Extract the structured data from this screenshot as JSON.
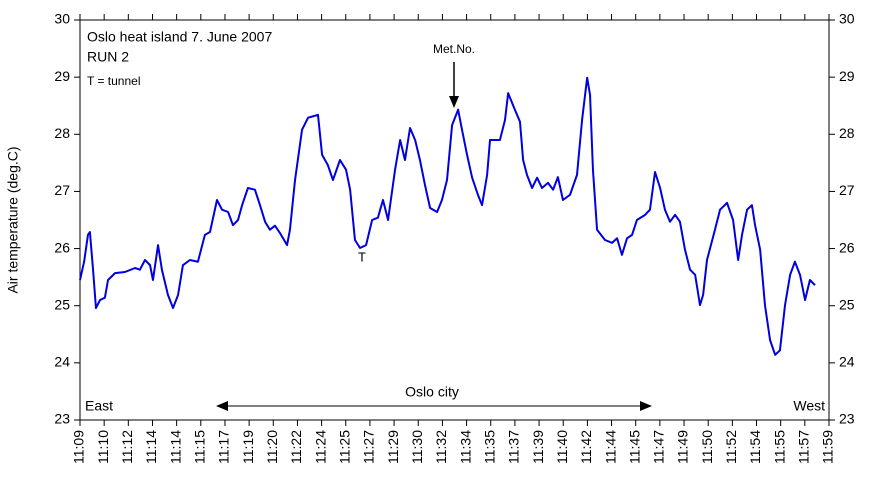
{
  "chart_data": {
    "type": "line",
    "title": "Oslo heat island 7. June 2007",
    "subtitle": "RUN 2",
    "ylabel": "Air temperature (deg.C)",
    "annotations": {
      "legend_note": "T = tunnel",
      "met": "Met.No.",
      "tunnel": "T",
      "east": "East",
      "west": "West",
      "city": "Oslo city"
    },
    "xlim": [
      0,
      31
    ],
    "xticks": [
      {
        "value": 0,
        "label": "11:09"
      },
      {
        "value": 1,
        "label": "11:10"
      },
      {
        "value": 2,
        "label": "11:12"
      },
      {
        "value": 3,
        "label": "11:14"
      },
      {
        "value": 4,
        "label": "11:14"
      },
      {
        "value": 5,
        "label": "11:15"
      },
      {
        "value": 6,
        "label": "11:17"
      },
      {
        "value": 7,
        "label": "11:19"
      },
      {
        "value": 8,
        "label": "11:20"
      },
      {
        "value": 9,
        "label": "11:22"
      },
      {
        "value": 10,
        "label": "11:24"
      },
      {
        "value": 11,
        "label": "11:25"
      },
      {
        "value": 12,
        "label": "11:27"
      },
      {
        "value": 13,
        "label": "11:29"
      },
      {
        "value": 14,
        "label": "11:30"
      },
      {
        "value": 15,
        "label": "11:32"
      },
      {
        "value": 16,
        "label": "11:34"
      },
      {
        "value": 17,
        "label": "11:35"
      },
      {
        "value": 18,
        "label": "11:37"
      },
      {
        "value": 19,
        "label": "11:39"
      },
      {
        "value": 20,
        "label": "11:40"
      },
      {
        "value": 21,
        "label": "11:42"
      },
      {
        "value": 22,
        "label": "11:44"
      },
      {
        "value": 23,
        "label": "11:45"
      },
      {
        "value": 24,
        "label": "11:47"
      },
      {
        "value": 25,
        "label": "11:49"
      },
      {
        "value": 26,
        "label": "11:50"
      },
      {
        "value": 27,
        "label": "11:52"
      },
      {
        "value": 28,
        "label": "11:54"
      },
      {
        "value": 29,
        "label": "11:55"
      },
      {
        "value": 30,
        "label": "11:57"
      },
      {
        "value": 31,
        "label": "11:59"
      }
    ],
    "ylim": [
      23,
      30
    ],
    "yticks": [
      23,
      24,
      25,
      26,
      27,
      28,
      29,
      30
    ],
    "series": [
      {
        "color": "#0000e0",
        "x": [
          0,
          0.17,
          0.33,
          0.41,
          0.54,
          0.66,
          0.83,
          1.03,
          1.16,
          1.45,
          1.86,
          2.28,
          2.48,
          2.69,
          2.9,
          3.02,
          3.23,
          3.39,
          3.64,
          3.85,
          4.06,
          4.26,
          4.55,
          4.88,
          5.17,
          5.38,
          5.67,
          5.88,
          6.13,
          6.33,
          6.54,
          6.71,
          6.95,
          7.24,
          7.45,
          7.66,
          7.86,
          8.07,
          8.28,
          8.57,
          8.69,
          8.9,
          9.19,
          9.44,
          9.85,
          10.02,
          10.26,
          10.47,
          10.76,
          11.01,
          11.18,
          11.38,
          11.59,
          11.84,
          12.09,
          12.33,
          12.54,
          12.75,
          13.04,
          13.25,
          13.45,
          13.66,
          13.87,
          14.07,
          14.28,
          14.49,
          14.78,
          14.98,
          15.19,
          15.4,
          15.65,
          15.81,
          16.02,
          16.23,
          16.47,
          16.64,
          16.85,
          16.97,
          17.38,
          17.59,
          17.72,
          18.0,
          18.21,
          18.34,
          18.5,
          18.71,
          18.92,
          19.12,
          19.37,
          19.58,
          19.78,
          19.99,
          20.28,
          20.57,
          20.78,
          20.99,
          21.11,
          21.23,
          21.4,
          21.73,
          22.02,
          22.23,
          22.43,
          22.64,
          22.85,
          23.05,
          23.39,
          23.59,
          23.8,
          24.01,
          24.21,
          24.42,
          24.63,
          24.83,
          25.04,
          25.25,
          25.46,
          25.66,
          25.79,
          25.95,
          26.28,
          26.49,
          26.78,
          27.03,
          27.24,
          27.4,
          27.61,
          27.81,
          27.94,
          28.15,
          28.35,
          28.56,
          28.77,
          28.97,
          29.18,
          29.39,
          29.59,
          29.8,
          30.01,
          30.21,
          30.42
        ],
        "values": [
          25.45,
          25.77,
          26.24,
          26.29,
          25.63,
          24.96,
          25.1,
          25.14,
          25.45,
          25.57,
          25.59,
          25.66,
          25.63,
          25.8,
          25.71,
          25.45,
          26.06,
          25.63,
          25.19,
          24.96,
          25.19,
          25.71,
          25.8,
          25.77,
          26.24,
          26.29,
          26.85,
          26.68,
          26.64,
          26.41,
          26.5,
          26.76,
          27.06,
          27.03,
          26.76,
          26.47,
          26.33,
          26.4,
          26.27,
          26.06,
          26.33,
          27.2,
          28.08,
          28.29,
          28.34,
          27.64,
          27.46,
          27.2,
          27.55,
          27.38,
          27.03,
          26.15,
          26.01,
          26.06,
          26.5,
          26.54,
          26.85,
          26.5,
          27.38,
          27.9,
          27.55,
          28.11,
          27.9,
          27.55,
          27.11,
          26.71,
          26.64,
          26.85,
          27.2,
          28.16,
          28.43,
          28.08,
          27.64,
          27.24,
          26.94,
          26.76,
          27.29,
          27.9,
          27.9,
          28.25,
          28.72,
          28.43,
          28.22,
          27.55,
          27.29,
          27.06,
          27.24,
          27.06,
          27.15,
          27.03,
          27.25,
          26.85,
          26.94,
          27.29,
          28.25,
          28.99,
          28.69,
          27.38,
          26.33,
          26.15,
          26.1,
          26.18,
          25.89,
          26.18,
          26.24,
          26.5,
          26.59,
          26.68,
          27.34,
          27.06,
          26.68,
          26.47,
          26.59,
          26.47,
          25.98,
          25.63,
          25.54,
          25.01,
          25.19,
          25.8,
          26.33,
          26.68,
          26.8,
          26.5,
          25.8,
          26.24,
          26.68,
          26.76,
          26.41,
          25.98,
          25.01,
          24.4,
          24.14,
          24.22,
          25.01,
          25.54,
          25.77,
          25.54,
          25.1,
          25.45,
          25.36
        ]
      }
    ]
  }
}
